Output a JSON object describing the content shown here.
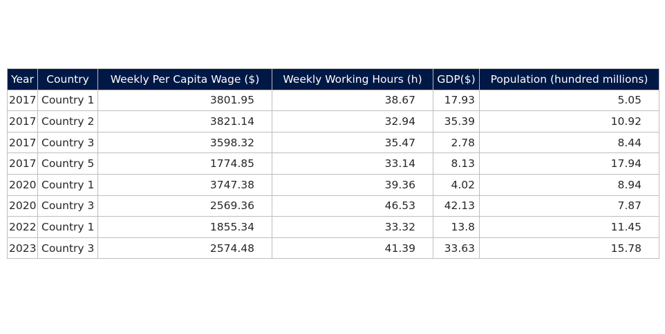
{
  "chart_data": {
    "type": "table",
    "columns": [
      "Year",
      "Country",
      "Weekly Per Capita Wage ($)",
      "Weekly Working Hours (h)",
      "GDP($)",
      "Population (hundred millions)"
    ],
    "rows": [
      [
        "2017",
        "Country 1",
        "3801.95",
        "38.67",
        "17.93",
        "5.05"
      ],
      [
        "2017",
        "Country 2",
        "3821.14",
        "32.94",
        "35.39",
        "10.92"
      ],
      [
        "2017",
        "Country 3",
        "3598.32",
        "35.47",
        "2.78",
        "8.44"
      ],
      [
        "2017",
        "Country 5",
        "1774.85",
        "33.14",
        "8.13",
        "17.94"
      ],
      [
        "2020",
        "Country 1",
        "3747.38",
        "39.36",
        "4.02",
        "8.94"
      ],
      [
        "2020",
        "Country 3",
        "2569.36",
        "46.53",
        "42.13",
        "7.87"
      ],
      [
        "2022",
        "Country 1",
        "1855.34",
        "33.32",
        "13.8",
        "11.45"
      ],
      [
        "2023",
        "Country 3",
        "2574.48",
        "41.39",
        "33.63",
        "15.78"
      ]
    ],
    "header_color": "#001845",
    "header_text_color": "#ffffff",
    "border_color": "#bdbdbd"
  }
}
